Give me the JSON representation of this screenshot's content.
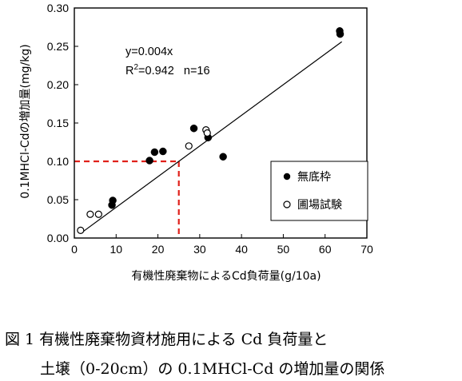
{
  "chart_data": {
    "type": "scatter",
    "xlabel": "有機性廃棄物によるCd負荷量(g/10a)",
    "ylabel": "0.1MHCl-Cdの増加量(mg/kg)",
    "xlim": [
      0,
      70
    ],
    "ylim": [
      0,
      0.3
    ],
    "xticks": [
      "0",
      "10",
      "20",
      "30",
      "40",
      "50",
      "60",
      "70"
    ],
    "yticks": [
      "0.00",
      "0.05",
      "0.10",
      "0.15",
      "0.20",
      "0.25",
      "0.30"
    ],
    "grid": false,
    "legend_position": "bottom-right",
    "series": [
      {
        "name": "無底枠",
        "marker": "filled-circle",
        "color": "#000000",
        "points": [
          [
            9,
            0.043
          ],
          [
            9.2,
            0.049
          ],
          [
            18,
            0.101
          ],
          [
            19.2,
            0.112
          ],
          [
            21.2,
            0.113
          ],
          [
            28.6,
            0.143
          ],
          [
            32,
            0.131
          ],
          [
            35.6,
            0.106
          ],
          [
            63.5,
            0.27
          ],
          [
            63.6,
            0.266
          ]
        ]
      },
      {
        "name": "圃場試験",
        "marker": "open-circle",
        "color": "#000000",
        "points": [
          [
            1.5,
            0.01
          ],
          [
            3.8,
            0.031
          ],
          [
            5.8,
            0.031
          ],
          [
            27.4,
            0.12
          ],
          [
            31.5,
            0.141
          ],
          [
            31.8,
            0.137
          ]
        ]
      }
    ],
    "regression": {
      "slope": 0.004,
      "x_range": [
        2,
        64
      ],
      "color": "#000000"
    },
    "annotations": {
      "equation": "y=0.004x",
      "r2_prefix": "R",
      "r2_sup": "2",
      "r2_rest": "=0.942   n=16"
    },
    "reference_lines": {
      "x": 25,
      "y": 0.1,
      "color": "#e0201a"
    }
  },
  "caption": {
    "line1": "図 1 有機性廃棄物資材施用による Cd 負荷量と",
    "line2": "土壌（0-20cm）の 0.1MHCl-Cd の増加量の関係"
  }
}
